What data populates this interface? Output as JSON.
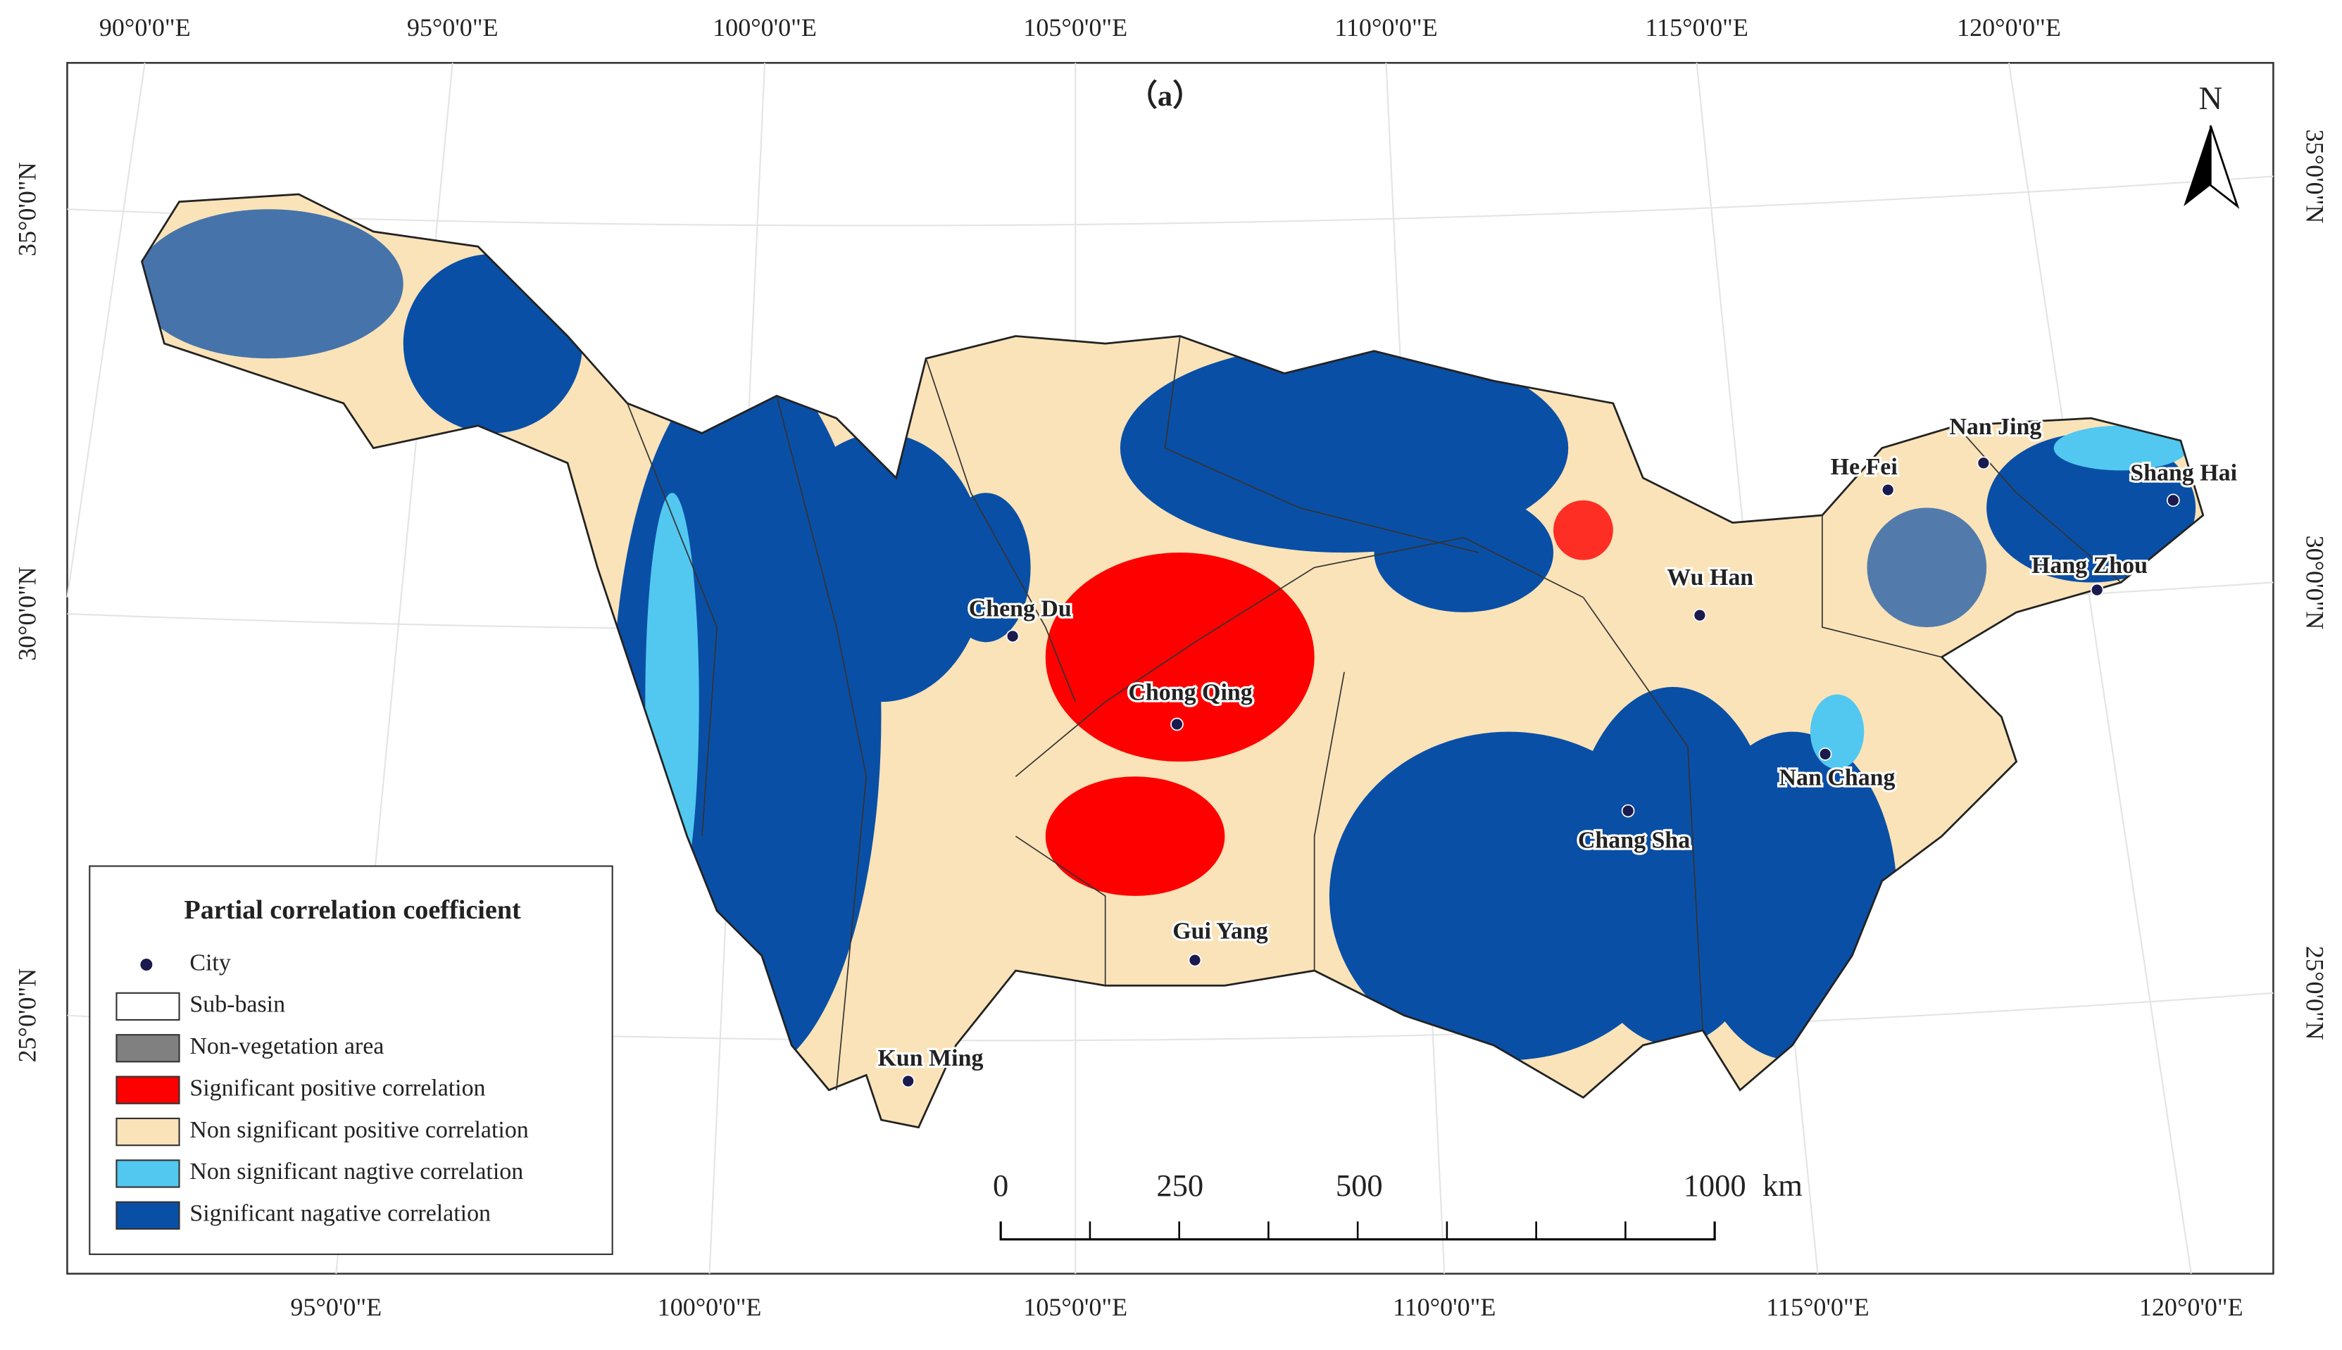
{
  "header": {
    "title": "（a）",
    "north": "N"
  },
  "graticule": {
    "top": [
      "90°0'0\"E",
      "95°0'0\"E",
      "100°0'0\"E",
      "105°0'0\"E",
      "110°0'0\"E",
      "115°0'0\"E",
      "120°0'0\"E"
    ],
    "bottom": [
      "95°0'0\"E",
      "100°0'0\"E",
      "105°0'0\"E",
      "110°0'0\"E",
      "115°0'0\"E",
      "120°0'0\"E"
    ],
    "left": [
      "35°0'0\"N",
      "30°0'0\"N",
      "25°0'0\"N"
    ],
    "right": [
      "35°0'0\"N",
      "30°0'0\"N",
      "25°0'0\"N"
    ]
  },
  "cities": [
    "Cheng Du",
    "Chong Qing",
    "Gui Yang",
    "Kun Ming",
    "Wu Han",
    "Chang Sha",
    "Nan Chang",
    "He Fei",
    "Nan Jing",
    "Shang Hai",
    "Hang Zhou"
  ],
  "legend": {
    "title": "Partial correlation coefficient",
    "items": [
      {
        "label": "City",
        "color": "#1a1a4e"
      },
      {
        "label": "Sub-basin",
        "color": "#ffffff"
      },
      {
        "label": "Non-vegetation area",
        "color": "#808080"
      },
      {
        "label": "Significant positive correlation",
        "color": "#ff0000"
      },
      {
        "label": "Non significant positive correlation",
        "color": "#fae3b8"
      },
      {
        "label": "Non significant nagtive correlation",
        "color": "#52c8f0"
      },
      {
        "label": "Significant nagative correlation",
        "color": "#0a4fa6"
      }
    ]
  },
  "scale_bar": {
    "labels": [
      "0",
      "250",
      "500",
      "1000"
    ],
    "unit": "km"
  }
}
